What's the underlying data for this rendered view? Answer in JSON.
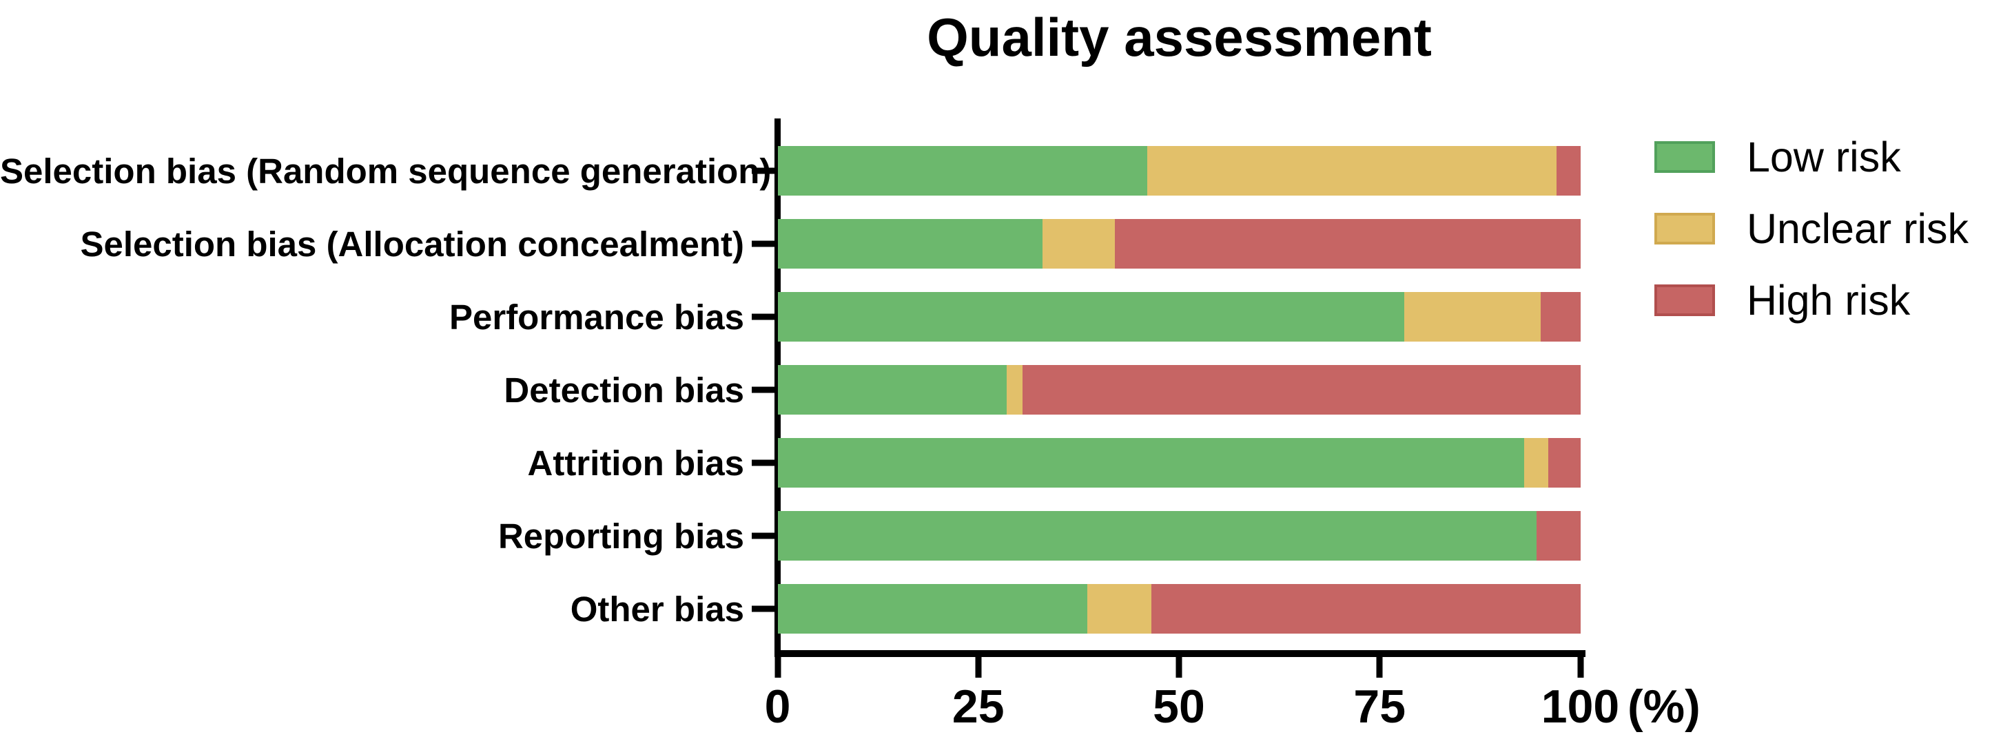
{
  "title": "Quality assessment",
  "x_axis": {
    "ticks": [
      "0",
      "25",
      "50",
      "75",
      "100"
    ],
    "values": [
      0,
      25,
      50,
      75,
      100
    ],
    "unit": "(%)",
    "min": 0,
    "max": 100
  },
  "legend": [
    {
      "label": "Low risk",
      "color": "#6cb86d",
      "border": "#52a15c"
    },
    {
      "label": "Unclear risk",
      "color": "#e2c06a",
      "border": "#d0a94f"
    },
    {
      "label": "High risk",
      "color": "#c66564",
      "border": "#b14f4e"
    }
  ],
  "chart_data": {
    "type": "bar",
    "orientation": "horizontal",
    "stacked": true,
    "title": "Quality assessment",
    "xlabel": "(%)",
    "xlim": [
      0,
      100
    ],
    "grid": false,
    "legend_position": "right",
    "categories": [
      "Selection bias (Random sequence generation)",
      "Selection bias (Allocation concealment)",
      "Performance bias",
      "Detection bias",
      "Attrition bias",
      "Reporting bias",
      "Other bias"
    ],
    "series": [
      {
        "name": "Low risk",
        "color": "#6cb86d",
        "values": [
          46,
          33,
          78,
          28.5,
          93,
          94.5,
          38.5
        ]
      },
      {
        "name": "Unclear risk",
        "color": "#e2c06a",
        "values": [
          51,
          9,
          17,
          2,
          3,
          0,
          8
        ]
      },
      {
        "name": "High risk",
        "color": "#c66564",
        "values": [
          3,
          58,
          5,
          69.5,
          4,
          5.5,
          53.5
        ]
      }
    ]
  }
}
